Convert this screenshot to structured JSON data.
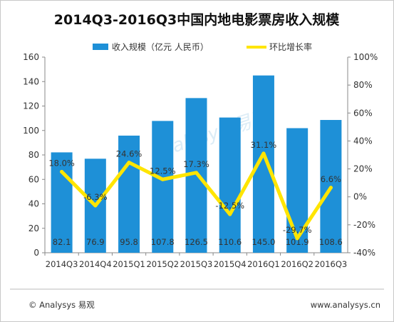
{
  "chart_data": {
    "type": "bar",
    "title": "2014Q3-2016Q3中国内地电影票房收入规模",
    "categories": [
      "2014Q3",
      "2014Q4",
      "2015Q1",
      "2015Q2",
      "2015Q3",
      "2015Q4",
      "2016Q1",
      "2016Q2",
      "2016Q3"
    ],
    "series": [
      {
        "name": "收入规模（亿元 人民币）",
        "type": "bar",
        "axis": "left",
        "values": [
          82.1,
          76.9,
          95.8,
          107.8,
          126.5,
          110.6,
          145.0,
          101.9,
          108.6
        ],
        "labels": [
          "82.1",
          "76.9",
          "95.8",
          "107.8",
          "126.5",
          "110.6",
          "145.0",
          "101.9",
          "108.6"
        ]
      },
      {
        "name": "环比增长率",
        "type": "line",
        "axis": "right",
        "values": [
          18.0,
          -6.3,
          24.6,
          12.5,
          17.3,
          -12.5,
          31.1,
          -29.7,
          6.6
        ],
        "labels": [
          "18.0%",
          "-6.3%",
          "24.6%",
          "12.5%",
          "17.3%",
          "-12.5%",
          "31.1%",
          "-29.7%",
          "6.6%"
        ]
      }
    ],
    "ylim": [
      0,
      160
    ],
    "yticks": [
      0,
      20,
      40,
      60,
      80,
      100,
      120,
      140,
      160
    ],
    "y2lim": [
      -40,
      100
    ],
    "y2ticks": [
      "-40%",
      "-20%",
      "0%",
      "20%",
      "40%",
      "60%",
      "80%",
      "100%"
    ],
    "legend_position": "top-center",
    "grid": false,
    "colors": {
      "bar": "#1e90d7",
      "line": "#ffe500"
    }
  },
  "watermark": "analysys 易观",
  "footer": {
    "left": "© Analysys 易观",
    "right": "www.analysys.cn"
  }
}
